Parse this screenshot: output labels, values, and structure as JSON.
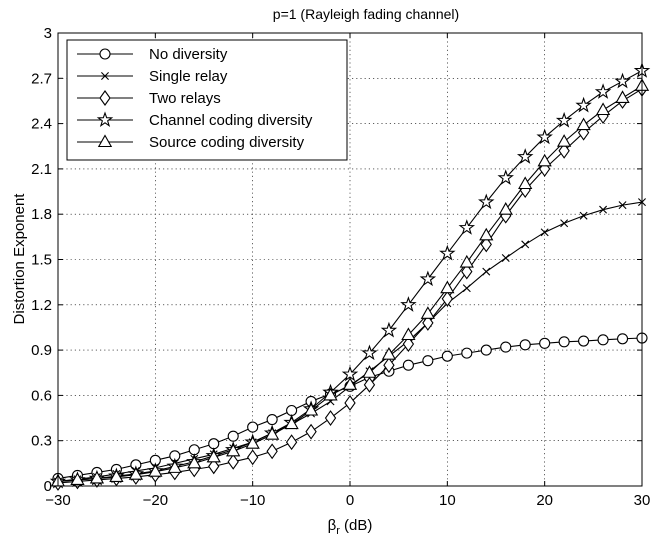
{
  "chart_data": {
    "type": "line",
    "title": "p=1 (Rayleigh fading channel)",
    "xlabel": "β",
    "xlabel_sub": "r",
    "xlabel_unit": " (dB)",
    "ylabel": "Distortion Exponent",
    "xlim": [
      -30,
      30
    ],
    "ylim": [
      0,
      3
    ],
    "xticks": [
      -30,
      -20,
      -10,
      0,
      10,
      20,
      30
    ],
    "yticks": [
      0,
      0.3,
      0.6,
      0.9,
      1.2,
      1.5,
      1.8,
      2.1,
      2.4,
      2.7,
      3
    ],
    "ytick_labels": [
      "0",
      "0.3",
      "0.6",
      "0.9",
      "1.2",
      "1.5",
      "1.8",
      "2.1",
      "2.4",
      "2.7",
      "3"
    ],
    "grid": true,
    "legend_position": "top-left",
    "x": [
      -30,
      -28,
      -26,
      -24,
      -22,
      -20,
      -18,
      -16,
      -14,
      -12,
      -10,
      -8,
      -6,
      -4,
      -2,
      0,
      2,
      4,
      6,
      8,
      10,
      12,
      14,
      16,
      18,
      20,
      22,
      24,
      26,
      28,
      30
    ],
    "series": [
      {
        "name": "No diversity",
        "marker": "circle",
        "values": [
          0.05,
          0.07,
          0.09,
          0.11,
          0.14,
          0.17,
          0.2,
          0.24,
          0.28,
          0.33,
          0.39,
          0.44,
          0.5,
          0.56,
          0.61,
          0.66,
          0.72,
          0.76,
          0.8,
          0.83,
          0.86,
          0.88,
          0.9,
          0.92,
          0.935,
          0.945,
          0.955,
          0.96,
          0.968,
          0.975,
          0.98
        ]
      },
      {
        "name": "Single relay",
        "marker": "x",
        "values": [
          0.03,
          0.045,
          0.06,
          0.08,
          0.1,
          0.12,
          0.15,
          0.18,
          0.21,
          0.25,
          0.29,
          0.35,
          0.41,
          0.48,
          0.56,
          0.66,
          0.76,
          0.86,
          0.96,
          1.08,
          1.21,
          1.31,
          1.42,
          1.51,
          1.6,
          1.68,
          1.74,
          1.79,
          1.83,
          1.86,
          1.88
        ]
      },
      {
        "name": "Two relays",
        "marker": "diamond",
        "values": [
          0.02,
          0.03,
          0.04,
          0.05,
          0.06,
          0.075,
          0.09,
          0.11,
          0.13,
          0.16,
          0.19,
          0.23,
          0.29,
          0.36,
          0.45,
          0.55,
          0.67,
          0.8,
          0.94,
          1.08,
          1.24,
          1.42,
          1.6,
          1.79,
          1.96,
          2.1,
          2.22,
          2.34,
          2.45,
          2.55,
          2.63
        ]
      },
      {
        "name": "Channel coding diversity",
        "marker": "star",
        "values": [
          0.03,
          0.04,
          0.05,
          0.065,
          0.08,
          0.1,
          0.13,
          0.16,
          0.2,
          0.24,
          0.29,
          0.35,
          0.42,
          0.51,
          0.62,
          0.74,
          0.88,
          1.03,
          1.2,
          1.37,
          1.54,
          1.71,
          1.88,
          2.04,
          2.18,
          2.31,
          2.42,
          2.52,
          2.61,
          2.68,
          2.75
        ]
      },
      {
        "name": "Source coding diversity",
        "marker": "triangle",
        "values": [
          0.03,
          0.04,
          0.05,
          0.06,
          0.075,
          0.095,
          0.12,
          0.15,
          0.19,
          0.23,
          0.28,
          0.34,
          0.41,
          0.5,
          0.6,
          0.67,
          0.75,
          0.87,
          1.0,
          1.14,
          1.31,
          1.48,
          1.66,
          1.83,
          2.0,
          2.15,
          2.28,
          2.39,
          2.49,
          2.57,
          2.65
        ]
      }
    ]
  }
}
